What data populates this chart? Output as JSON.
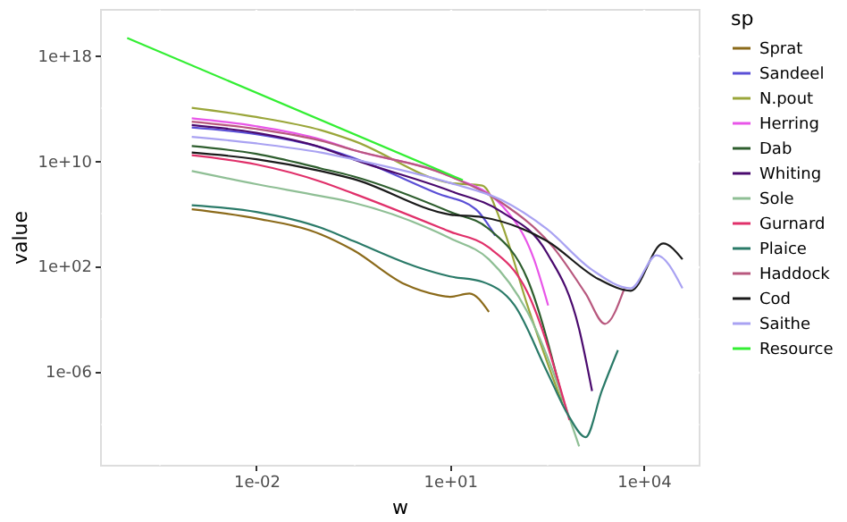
{
  "chart_data": {
    "type": "line",
    "xlabel": "w",
    "ylabel": "value",
    "legend_title": "sp",
    "log": "xy",
    "grid": true,
    "legend": "right",
    "line_style": "solid",
    "marker": "none",
    "xlim": [
      3.8e-05,
      71000.0
    ],
    "ylim": [
      8e-14,
      3.2e+21
    ],
    "xticks": [
      {
        "value": 0.000316,
        "label": null
      },
      {
        "value": 0.01,
        "label": "1e-02"
      },
      {
        "value": 0.316,
        "label": null
      },
      {
        "value": 10,
        "label": "1e+01"
      },
      {
        "value": 316,
        "label": null
      },
      {
        "value": 10000,
        "label": "1e+04"
      }
    ],
    "yticks": [
      {
        "value": 1e-10,
        "label": null
      },
      {
        "value": 1e-06,
        "label": "1e-06"
      },
      {
        "value": 0.01,
        "label": null
      },
      {
        "value": 100,
        "label": "1e+02"
      },
      {
        "value": 1000000.0,
        "label": null
      },
      {
        "value": 10000000000.0,
        "label": "1e+10"
      },
      {
        "value": 100000000000000.0,
        "label": null
      },
      {
        "value": 1e+18,
        "label": "1e+18"
      }
    ],
    "series": [
      {
        "name": "Sprat",
        "color": "#8b6a1a",
        "x": [
          0.001,
          0.01,
          0.1,
          0.316,
          2,
          6.3,
          10,
          20,
          40
        ],
        "values": [
          2000000.0,
          400000.0,
          25000.0,
          1600.0,
          4,
          0.63,
          0.45,
          0.8,
          0.032
        ]
      },
      {
        "name": "Sandeel",
        "color": "#5a4fd6",
        "x": [
          0.001,
          0.01,
          0.1,
          0.316,
          6.3,
          25.1,
          50
        ],
        "values": [
          3200000000000.0,
          1000000000000.0,
          100000000000.0,
          16000000000.0,
          32000000.0,
          2000000.0,
          20000.0
        ]
      },
      {
        "name": "N.pout",
        "color": "#9aa63a",
        "x": [
          0.001,
          0.01,
          0.1,
          0.316,
          10,
          31.6,
          63,
          158,
          562
        ],
        "values": [
          100000000000000.0,
          20000000000000.0,
          2000000000000.0,
          320000000000.0,
          200000000.0,
          126000000.0,
          160000.0,
          0.1,
          2.5e-09
        ]
      },
      {
        "name": "Herring",
        "color": "#e855e8",
        "x": [
          0.001,
          0.01,
          0.1,
          0.316,
          10,
          63,
          200,
          331
        ],
        "values": [
          16000000000000.0,
          4000000000000.0,
          400000000000.0,
          63000000000.0,
          630000000.0,
          4000000.0,
          316,
          0.1
        ]
      },
      {
        "name": "Dab",
        "color": "#2e5e2e",
        "x": [
          0.001,
          0.01,
          0.1,
          0.316,
          10,
          40,
          158,
          562
        ],
        "values": [
          126000000000.0,
          32000000000.0,
          2500000000.0,
          630000000.0,
          1260000.0,
          63000.0,
          10,
          6.3e-09
        ]
      },
      {
        "name": "Whiting",
        "color": "#4a0a6e",
        "x": [
          0.001,
          0.01,
          0.1,
          0.316,
          10,
          63,
          316,
          1000,
          1585
        ],
        "values": [
          5000000000000.0,
          1260000000000.0,
          100000000000.0,
          12600000000.0,
          50000000.0,
          1260000.0,
          1000,
          0.0016,
          3.2e-08
        ]
      },
      {
        "name": "Sole",
        "color": "#8fbf95",
        "x": [
          0.001,
          0.01,
          0.1,
          0.316,
          10,
          40,
          158,
          1000
        ],
        "values": [
          1600000000.0,
          160000000.0,
          20000000.0,
          6300000.0,
          12600.0,
          316,
          0.032,
          2e-12
        ]
      },
      {
        "name": "Gurnard",
        "color": "#e0306a",
        "x": [
          0.001,
          0.01,
          0.1,
          0.316,
          10,
          40,
          158,
          708
        ],
        "values": [
          25000000000.0,
          5000000000.0,
          250000000.0,
          32000000.0,
          40000.0,
          2500.0,
          1,
          2e-10
        ]
      },
      {
        "name": "Plaice",
        "color": "#2a7a68",
        "x": [
          0.001,
          0.01,
          0.1,
          0.316,
          3.16,
          10,
          31.6,
          100,
          316,
          708,
          1259,
          2239,
          3981
        ],
        "values": [
          4000000.0,
          1260000.0,
          79000.0,
          7900.0,
          79,
          16,
          6.3,
          0.1,
          1e-06,
          3.2e-10,
          1e-11,
          3.2e-08,
          4e-05
        ]
      },
      {
        "name": "Haddock",
        "color": "#b8587e",
        "x": [
          0.001,
          0.01,
          0.1,
          0.316,
          10,
          63,
          398,
          1259,
          2512,
          5012
        ],
        "values": [
          8900000000000.0,
          2500000000000.0,
          320000000000.0,
          63000000000.0,
          630000000.0,
          6300000.0,
          2500.0,
          0.79,
          0.004,
          2
        ]
      },
      {
        "name": "Cod",
        "color": "#1a1a1a",
        "x": [
          0.001,
          0.01,
          0.1,
          0.316,
          10,
          31.6,
          316,
          1995,
          6310,
          19953,
          39811
        ],
        "values": [
          40000000000.0,
          12600000000.0,
          1600000000.0,
          400000000.0,
          790000.0,
          500000.0,
          7900.0,
          10,
          1.3,
          5000.0,
          316
        ]
      },
      {
        "name": "Saithe",
        "color": "#a9a2f2",
        "x": [
          0.001,
          0.01,
          0.1,
          0.316,
          10,
          63,
          316,
          1585,
          6310,
          15849,
          39811
        ],
        "values": [
          630000000000.0,
          200000000000.0,
          40000000000.0,
          12600000000.0,
          200000000.0,
          10000000.0,
          63000.0,
          50,
          2,
          631,
          2
        ]
      },
      {
        "name": "Resource",
        "color": "#33ee33",
        "x": [
          0.0001,
          15.8
        ],
        "values": [
          2e+19,
          320000000.0
        ]
      }
    ]
  }
}
